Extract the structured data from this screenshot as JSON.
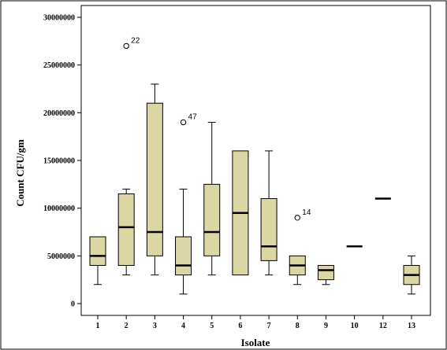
{
  "chart_data": {
    "type": "boxplot",
    "xlabel": "Isolate",
    "ylabel": "Count CFU/gm",
    "ylim": [
      0,
      30000000
    ],
    "yticks": [
      0,
      5000000,
      10000000,
      15000000,
      20000000,
      25000000,
      30000000
    ],
    "ytick_labels": [
      "0",
      "5000000",
      "10000000",
      "15000000",
      "20000000",
      "25000000",
      "30000000"
    ],
    "grid": false,
    "categories": [
      "1",
      "2",
      "3",
      "4",
      "5",
      "6",
      "7",
      "8",
      "9",
      "10",
      "12",
      "13"
    ],
    "boxes": [
      {
        "category": "1",
        "min": 2000000,
        "q1": 4000000,
        "median": 5000000,
        "q3": 7000000,
        "max": 7000000
      },
      {
        "category": "2",
        "min": 3000000,
        "q1": 4000000,
        "median": 8000000,
        "q3": 11500000,
        "max": 12000000
      },
      {
        "category": "3",
        "min": 3000000,
        "q1": 5000000,
        "median": 7500000,
        "q3": 21000000,
        "max": 23000000
      },
      {
        "category": "4",
        "min": 1000000,
        "q1": 3000000,
        "median": 4000000,
        "q3": 7000000,
        "max": 12000000
      },
      {
        "category": "5",
        "min": 3000000,
        "q1": 5000000,
        "median": 7500000,
        "q3": 12500000,
        "max": 19000000
      },
      {
        "category": "6",
        "min": 3000000,
        "q1": 3000000,
        "median": 9500000,
        "q3": 16000000,
        "max": 16000000
      },
      {
        "category": "7",
        "min": 3000000,
        "q1": 4500000,
        "median": 6000000,
        "q3": 11000000,
        "max": 16000000
      },
      {
        "category": "8",
        "min": 2000000,
        "q1": 3000000,
        "median": 4000000,
        "q3": 5000000,
        "max": 5000000
      },
      {
        "category": "9",
        "min": 2000000,
        "q1": 2500000,
        "median": 3500000,
        "q3": 4000000,
        "max": 4000000
      },
      {
        "category": "10",
        "min": 6000000,
        "q1": 6000000,
        "median": 6000000,
        "q3": 6000000,
        "max": 6000000
      },
      {
        "category": "12",
        "min": 11000000,
        "q1": 11000000,
        "median": 11000000,
        "q3": 11000000,
        "max": 11000000
      },
      {
        "category": "13",
        "min": 1000000,
        "q1": 2000000,
        "median": 3000000,
        "q3": 4000000,
        "max": 5000000
      }
    ],
    "outliers": [
      {
        "category": "2",
        "value": 27000000,
        "label": "22"
      },
      {
        "category": "4",
        "value": 19000000,
        "label": "47"
      },
      {
        "category": "8",
        "value": 9000000,
        "label": "14"
      }
    ],
    "colors": {
      "box_fill": "#dcd6a4",
      "stroke": "#000000"
    }
  }
}
